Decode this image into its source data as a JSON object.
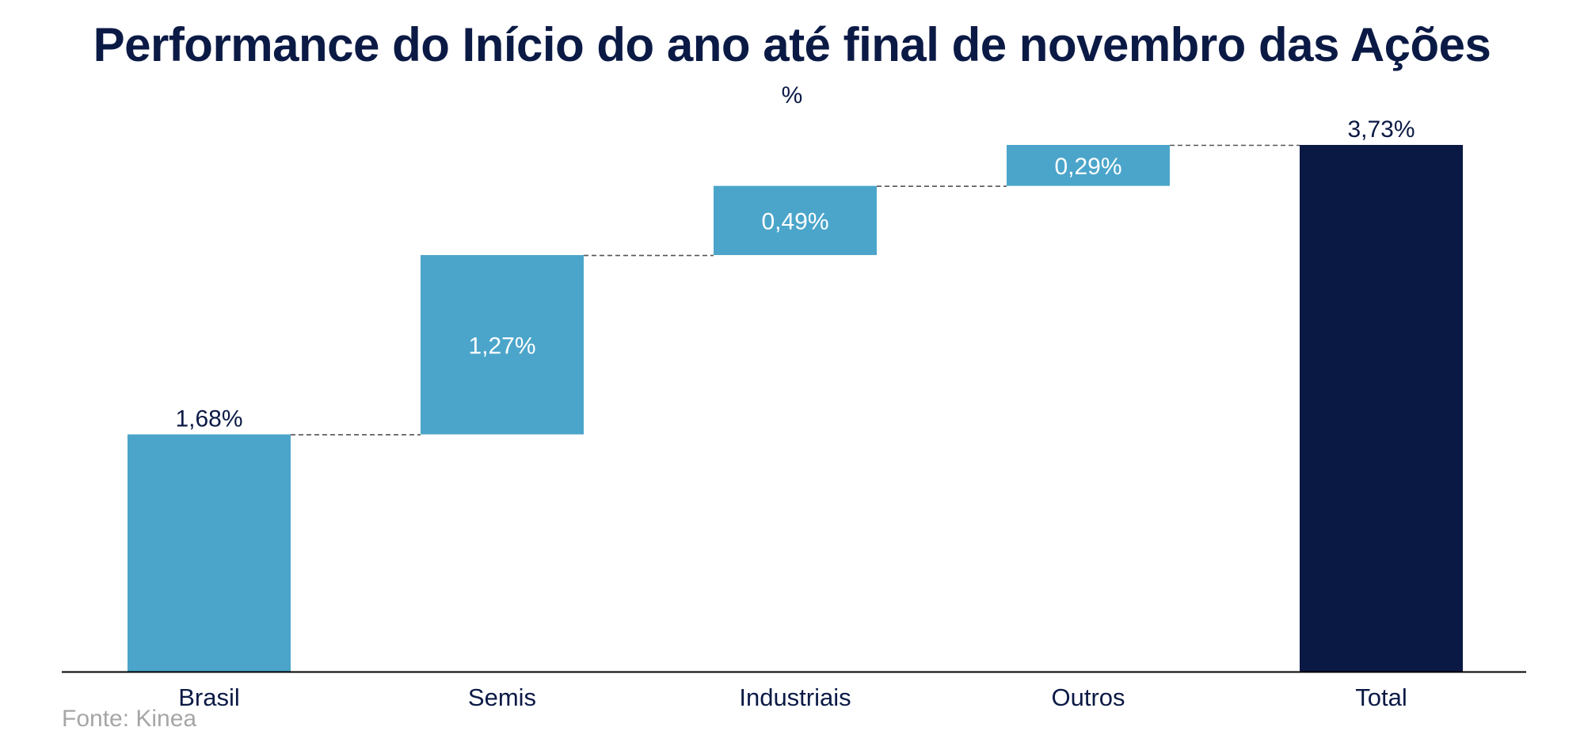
{
  "chart_data": {
    "type": "bar",
    "subtype": "waterfall",
    "title": "Performance do Início do ano até final de novembro das Ações",
    "subtitle": "%",
    "categories": [
      "Brasil",
      "Semis",
      "Industriais",
      "Outros",
      "Total"
    ],
    "values": [
      1.68,
      1.27,
      0.49,
      0.29,
      3.73
    ],
    "labels": [
      "1,68%",
      "1,27%",
      "0,49%",
      "0,29%",
      "3,73%"
    ],
    "is_total": [
      false,
      false,
      false,
      false,
      true
    ],
    "ylim": [
      0,
      3.73
    ],
    "grid": false,
    "legend": "none",
    "connectors": "dashed"
  },
  "colors": {
    "increase": "#4ba5ca",
    "total": "#0a1944",
    "text_dark": "#0b1a45",
    "text_on_bar": "#ffffff",
    "source": "#a6a6a6",
    "axis": "#000000",
    "connector": "#555555"
  },
  "source": "Fonte: Kinea"
}
